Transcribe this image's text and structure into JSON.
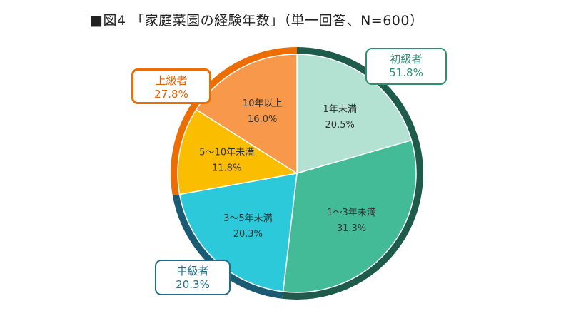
{
  "title": "■図4 「家庭菜園の経験年数」（単一回答、N=600）",
  "chart_data": {
    "type": "pie",
    "title": "■図4 「家庭菜園の経験年数」（単一回答、N=600）",
    "slices": [
      {
        "label": "1年未満",
        "value": 20.5,
        "value_label": "20.5%",
        "color": "#b3e2d3",
        "group": "beginner"
      },
      {
        "label": "1～3年未満",
        "value": 31.3,
        "value_label": "31.3%",
        "color": "#43bb96",
        "group": "beginner"
      },
      {
        "label": "3～5年未満",
        "value": 20.3,
        "value_label": "20.3%",
        "color": "#2bc9d9",
        "group": "middle"
      },
      {
        "label": "5～10年未満",
        "value": 11.8,
        "value_label": "11.8%",
        "color": "#fbbd00",
        "group": "advanced"
      },
      {
        "label": "10年以上",
        "value": 16.0,
        "value_label": "16.0%",
        "color": "#f7984a",
        "group": "advanced"
      }
    ],
    "groups": [
      {
        "key": "beginner",
        "name": "初級者",
        "value": 51.8,
        "value_label": "51.8%",
        "color": "#1e5b4a"
      },
      {
        "key": "middle",
        "name": "中級者",
        "value": 20.3,
        "value_label": "20.3%",
        "color": "#1a5a72"
      },
      {
        "key": "advanced",
        "name": "上級者",
        "value": 27.8,
        "value_label": "27.8%",
        "color": "#ee6d00"
      }
    ]
  }
}
